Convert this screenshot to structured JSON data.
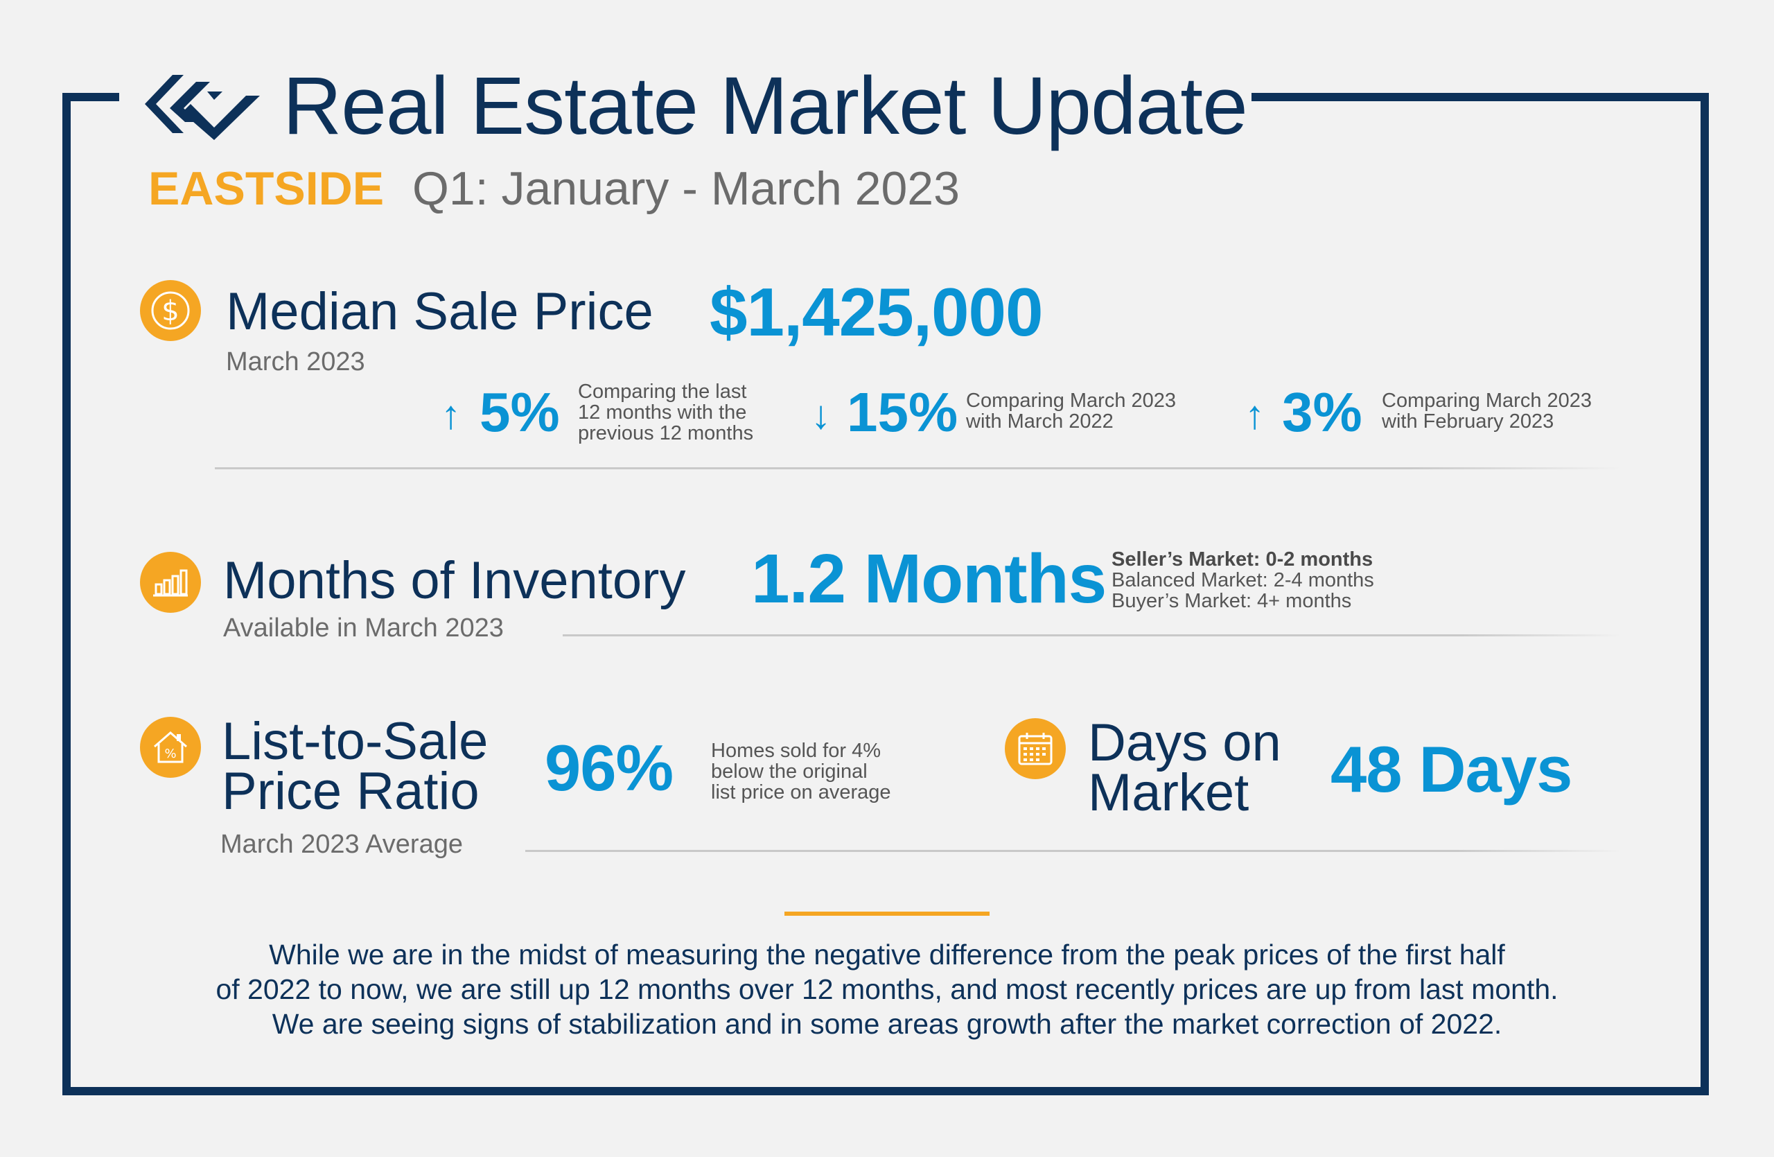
{
  "header": {
    "title": "Real Estate Market Update",
    "region": "EASTSIDE",
    "period": "Q1: January - March 2023"
  },
  "median_sale_price": {
    "label": "Median Sale Price",
    "sublabel": "March 2023",
    "value": "$1,425,000",
    "icon": "dollar-icon",
    "comparisons": [
      {
        "direction": "up",
        "arrow": "↑",
        "value": "5%",
        "lines": [
          "Comparing the last",
          "12 months with the",
          "previous 12 months"
        ]
      },
      {
        "direction": "down",
        "arrow": "↓",
        "value": "15%",
        "lines": [
          "Comparing March 2023",
          "with March 2022"
        ]
      },
      {
        "direction": "up",
        "arrow": "↑",
        "value": "3%",
        "lines": [
          "Comparing March 2023",
          "with February 2023"
        ]
      }
    ]
  },
  "months_of_inventory": {
    "label": "Months of Inventory",
    "sublabel": "Available in March 2023",
    "value": "1.2 Months",
    "icon": "bar-chart-icon",
    "legend": [
      "Seller’s Market: 0-2 months",
      "Balanced Market: 2-4 months",
      "Buyer’s Market: 4+ months"
    ]
  },
  "list_to_sale": {
    "label_lines": [
      "List-to-Sale",
      "Price Ratio"
    ],
    "sublabel": "March 2023 Average",
    "value": "96%",
    "icon": "house-percent-icon",
    "note_lines": [
      "Homes sold for 4%",
      "below the original",
      "list price on average"
    ]
  },
  "days_on_market": {
    "label_lines": [
      "Days on",
      "Market"
    ],
    "value": "48 Days",
    "icon": "calendar-icon"
  },
  "summary": {
    "lines": [
      "While we are in the midst of measuring the negative difference from the peak prices of the first half",
      "of 2022 to now, we are still up 12 months over 12 months, and most recently prices are up from last month.",
      "We are seeing signs of stabilization and in some areas growth after the market correction of 2022."
    ]
  },
  "colors": {
    "navy": "#0d3159",
    "accent_blue": "#0a93d4",
    "accent_orange": "#f5a623",
    "background": "#f2f2f2"
  }
}
